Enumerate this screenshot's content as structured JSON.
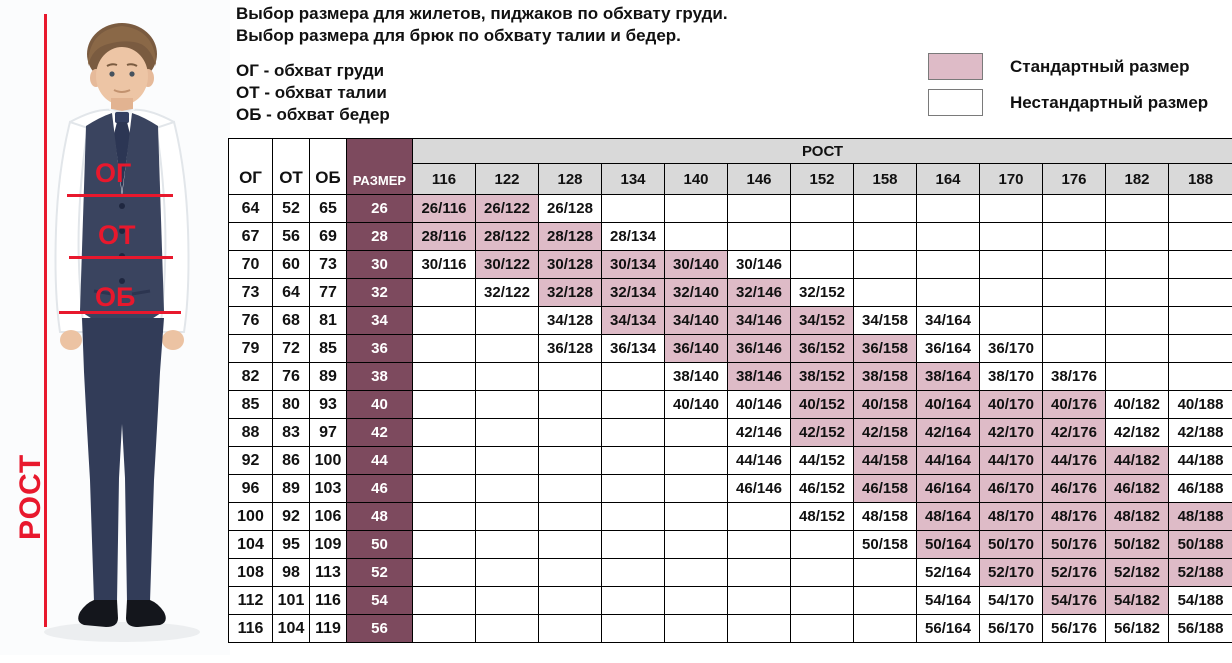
{
  "header": {
    "title_line1": "Выбор размера для жилетов, пиджаков по обхвату груди.",
    "title_line2": "Выбор размера для брюк по обхвату талии и бедер.",
    "definitions": [
      "ОГ - обхват груди",
      "ОТ - обхват талии",
      "ОБ - обхват бедер"
    ]
  },
  "legend": {
    "standard_label": "Стандартный размер",
    "standard_color": "#debbc7",
    "nonstandard_label": "Нестандартный размер",
    "nonstandard_color": "#ffffff"
  },
  "figure": {
    "chest_label": "ОГ",
    "waist_label": "ОТ",
    "hips_label": "ОБ",
    "height_label": "РОСТ",
    "accent_color": "#e8182d"
  },
  "chart_data": {
    "type": "table",
    "corner_headers": [
      "ОГ",
      "ОТ",
      "ОБ",
      "РАЗМЕР"
    ],
    "group_header": "РОСТ",
    "heights": [
      "116",
      "122",
      "128",
      "134",
      "140",
      "146",
      "152",
      "158",
      "164",
      "170",
      "176",
      "182",
      "188"
    ],
    "colors": {
      "size_column_bg": "#7d4a5e",
      "standard_bg": "#debbc7",
      "header_bg": "#d9d9d9",
      "border": "#000000"
    },
    "rows": [
      {
        "og": "64",
        "ot": "52",
        "ob": "65",
        "size": "26",
        "cells": [
          {
            "v": "26/116",
            "s": true
          },
          {
            "v": "26/122",
            "s": true
          },
          {
            "v": "26/128",
            "s": false
          },
          null,
          null,
          null,
          null,
          null,
          null,
          null,
          null,
          null,
          null
        ]
      },
      {
        "og": "67",
        "ot": "56",
        "ob": "69",
        "size": "28",
        "cells": [
          {
            "v": "28/116",
            "s": true
          },
          {
            "v": "28/122",
            "s": true
          },
          {
            "v": "28/128",
            "s": true
          },
          {
            "v": "28/134",
            "s": false
          },
          null,
          null,
          null,
          null,
          null,
          null,
          null,
          null,
          null
        ]
      },
      {
        "og": "70",
        "ot": "60",
        "ob": "73",
        "size": "30",
        "cells": [
          {
            "v": "30/116",
            "s": false
          },
          {
            "v": "30/122",
            "s": true
          },
          {
            "v": "30/128",
            "s": true
          },
          {
            "v": "30/134",
            "s": true
          },
          {
            "v": "30/140",
            "s": true
          },
          {
            "v": "30/146",
            "s": false
          },
          null,
          null,
          null,
          null,
          null,
          null,
          null
        ]
      },
      {
        "og": "73",
        "ot": "64",
        "ob": "77",
        "size": "32",
        "cells": [
          null,
          {
            "v": "32/122",
            "s": false
          },
          {
            "v": "32/128",
            "s": true
          },
          {
            "v": "32/134",
            "s": true
          },
          {
            "v": "32/140",
            "s": true
          },
          {
            "v": "32/146",
            "s": true
          },
          {
            "v": "32/152",
            "s": false
          },
          null,
          null,
          null,
          null,
          null,
          null
        ]
      },
      {
        "og": "76",
        "ot": "68",
        "ob": "81",
        "size": "34",
        "cells": [
          null,
          null,
          {
            "v": "34/128",
            "s": false
          },
          {
            "v": "34/134",
            "s": true
          },
          {
            "v": "34/140",
            "s": true
          },
          {
            "v": "34/146",
            "s": true
          },
          {
            "v": "34/152",
            "s": true
          },
          {
            "v": "34/158",
            "s": false
          },
          {
            "v": "34/164",
            "s": false
          },
          null,
          null,
          null,
          null
        ]
      },
      {
        "og": "79",
        "ot": "72",
        "ob": "85",
        "size": "36",
        "cells": [
          null,
          null,
          {
            "v": "36/128",
            "s": false
          },
          {
            "v": "36/134",
            "s": false
          },
          {
            "v": "36/140",
            "s": true
          },
          {
            "v": "36/146",
            "s": true
          },
          {
            "v": "36/152",
            "s": true
          },
          {
            "v": "36/158",
            "s": true
          },
          {
            "v": "36/164",
            "s": false
          },
          {
            "v": "36/170",
            "s": false
          },
          null,
          null,
          null
        ]
      },
      {
        "og": "82",
        "ot": "76",
        "ob": "89",
        "size": "38",
        "cells": [
          null,
          null,
          null,
          null,
          {
            "v": "38/140",
            "s": false
          },
          {
            "v": "38/146",
            "s": true
          },
          {
            "v": "38/152",
            "s": true
          },
          {
            "v": "38/158",
            "s": true
          },
          {
            "v": "38/164",
            "s": true
          },
          {
            "v": "38/170",
            "s": false
          },
          {
            "v": "38/176",
            "s": false
          },
          null,
          null
        ]
      },
      {
        "og": "85",
        "ot": "80",
        "ob": "93",
        "size": "40",
        "cells": [
          null,
          null,
          null,
          null,
          {
            "v": "40/140",
            "s": false
          },
          {
            "v": "40/146",
            "s": false
          },
          {
            "v": "40/152",
            "s": true
          },
          {
            "v": "40/158",
            "s": true
          },
          {
            "v": "40/164",
            "s": true
          },
          {
            "v": "40/170",
            "s": true
          },
          {
            "v": "40/176",
            "s": true
          },
          {
            "v": "40/182",
            "s": false
          },
          {
            "v": "40/188",
            "s": false
          }
        ]
      },
      {
        "og": "88",
        "ot": "83",
        "ob": "97",
        "size": "42",
        "cells": [
          null,
          null,
          null,
          null,
          null,
          {
            "v": "42/146",
            "s": false
          },
          {
            "v": "42/152",
            "s": true
          },
          {
            "v": "42/158",
            "s": true
          },
          {
            "v": "42/164",
            "s": true
          },
          {
            "v": "42/170",
            "s": true
          },
          {
            "v": "42/176",
            "s": true
          },
          {
            "v": "42/182",
            "s": false
          },
          {
            "v": "42/188",
            "s": false
          }
        ]
      },
      {
        "og": "92",
        "ot": "86",
        "ob": "100",
        "size": "44",
        "cells": [
          null,
          null,
          null,
          null,
          null,
          {
            "v": "44/146",
            "s": false
          },
          {
            "v": "44/152",
            "s": false
          },
          {
            "v": "44/158",
            "s": true
          },
          {
            "v": "44/164",
            "s": true
          },
          {
            "v": "44/170",
            "s": true
          },
          {
            "v": "44/176",
            "s": true
          },
          {
            "v": "44/182",
            "s": true
          },
          {
            "v": "44/188",
            "s": false
          }
        ]
      },
      {
        "og": "96",
        "ot": "89",
        "ob": "103",
        "size": "46",
        "cells": [
          null,
          null,
          null,
          null,
          null,
          {
            "v": "46/146",
            "s": false
          },
          {
            "v": "46/152",
            "s": false
          },
          {
            "v": "46/158",
            "s": true
          },
          {
            "v": "46/164",
            "s": true
          },
          {
            "v": "46/170",
            "s": true
          },
          {
            "v": "46/176",
            "s": true
          },
          {
            "v": "46/182",
            "s": true
          },
          {
            "v": "46/188",
            "s": false
          }
        ]
      },
      {
        "og": "100",
        "ot": "92",
        "ob": "106",
        "size": "48",
        "cells": [
          null,
          null,
          null,
          null,
          null,
          null,
          {
            "v": "48/152",
            "s": false
          },
          {
            "v": "48/158",
            "s": false
          },
          {
            "v": "48/164",
            "s": true
          },
          {
            "v": "48/170",
            "s": true
          },
          {
            "v": "48/176",
            "s": true
          },
          {
            "v": "48/182",
            "s": true
          },
          {
            "v": "48/188",
            "s": true
          }
        ]
      },
      {
        "og": "104",
        "ot": "95",
        "ob": "109",
        "size": "50",
        "cells": [
          null,
          null,
          null,
          null,
          null,
          null,
          null,
          {
            "v": "50/158",
            "s": false
          },
          {
            "v": "50/164",
            "s": true
          },
          {
            "v": "50/170",
            "s": true
          },
          {
            "v": "50/176",
            "s": true
          },
          {
            "v": "50/182",
            "s": true
          },
          {
            "v": "50/188",
            "s": true
          }
        ]
      },
      {
        "og": "108",
        "ot": "98",
        "ob": "113",
        "size": "52",
        "cells": [
          null,
          null,
          null,
          null,
          null,
          null,
          null,
          null,
          {
            "v": "52/164",
            "s": false
          },
          {
            "v": "52/170",
            "s": true
          },
          {
            "v": "52/176",
            "s": true
          },
          {
            "v": "52/182",
            "s": true
          },
          {
            "v": "52/188",
            "s": true
          }
        ]
      },
      {
        "og": "112",
        "ot": "101",
        "ob": "116",
        "size": "54",
        "cells": [
          null,
          null,
          null,
          null,
          null,
          null,
          null,
          null,
          {
            "v": "54/164",
            "s": false
          },
          {
            "v": "54/170",
            "s": false
          },
          {
            "v": "54/176",
            "s": true
          },
          {
            "v": "54/182",
            "s": true
          },
          {
            "v": "54/188",
            "s": false
          }
        ]
      },
      {
        "og": "116",
        "ot": "104",
        "ob": "119",
        "size": "56",
        "cells": [
          null,
          null,
          null,
          null,
          null,
          null,
          null,
          null,
          {
            "v": "56/164",
            "s": false
          },
          {
            "v": "56/170",
            "s": false
          },
          {
            "v": "56/176",
            "s": false
          },
          {
            "v": "56/182",
            "s": false
          },
          {
            "v": "56/188",
            "s": false
          }
        ]
      }
    ]
  }
}
